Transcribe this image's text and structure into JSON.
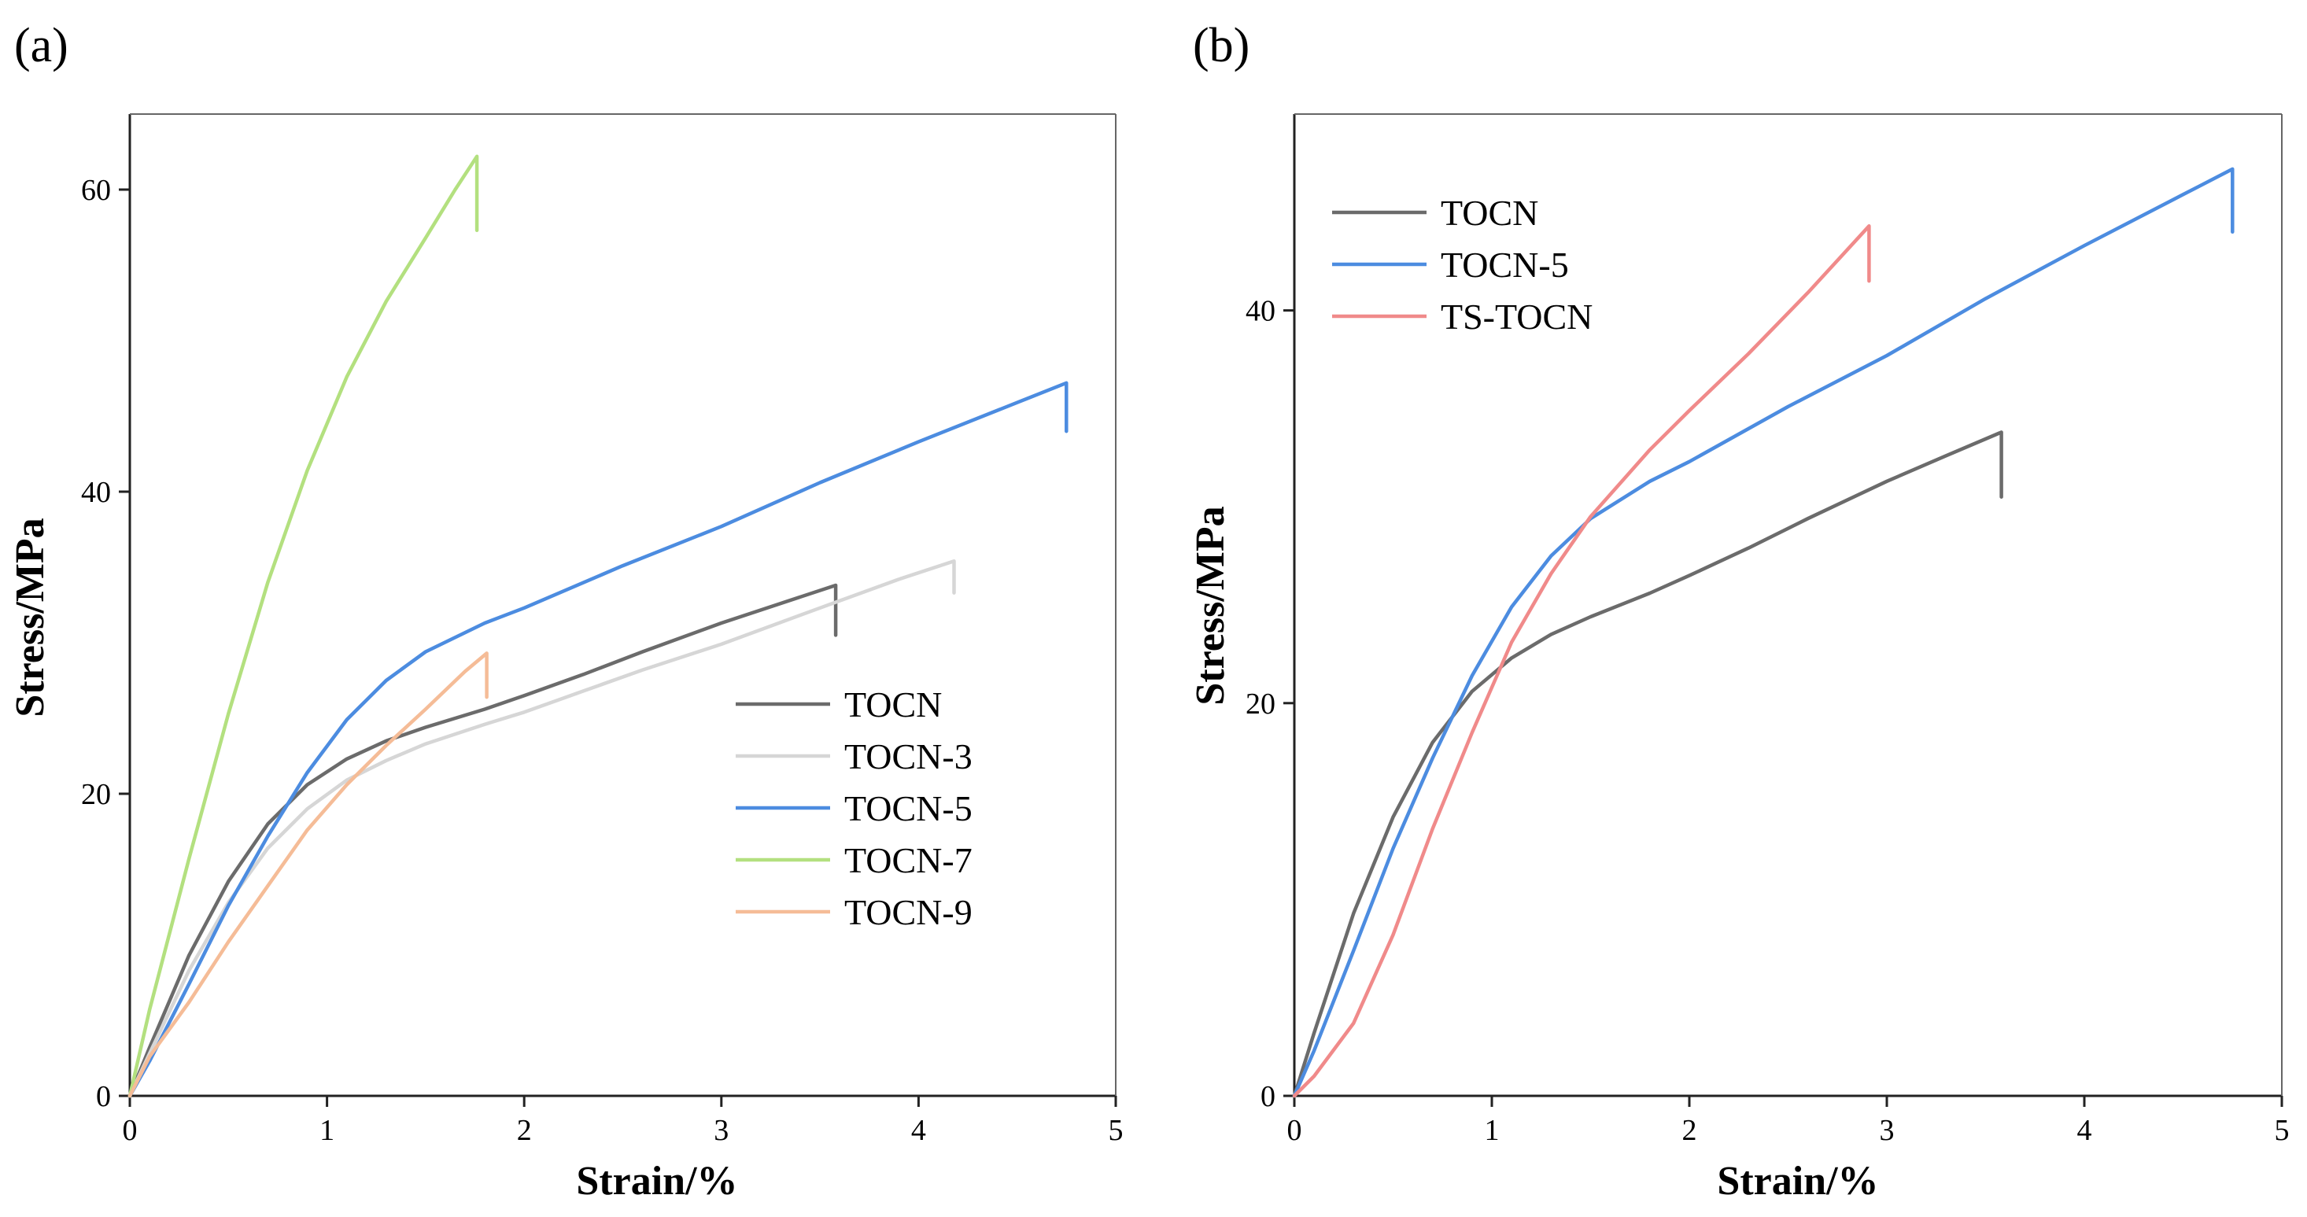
{
  "chart_data": [
    {
      "type": "line",
      "panel_label": "(a)",
      "xlabel": "Strain/%",
      "ylabel": "Stress/MPa",
      "xlim": [
        0,
        5
      ],
      "ylim": [
        0,
        65
      ],
      "xticks": [
        "0",
        "1",
        "2",
        "3",
        "4",
        "5"
      ],
      "yticks": [
        "0",
        "20",
        "40",
        "60"
      ],
      "legend_position": "center-right",
      "series": [
        {
          "name": "TOCN",
          "color": "#6b6b6b",
          "points": [
            [
              0,
              0
            ],
            [
              0.1,
              3.2
            ],
            [
              0.3,
              9.3
            ],
            [
              0.5,
              14.2
            ],
            [
              0.7,
              18.0
            ],
            [
              0.9,
              20.6
            ],
            [
              1.1,
              22.3
            ],
            [
              1.3,
              23.5
            ],
            [
              1.5,
              24.4
            ],
            [
              1.8,
              25.6
            ],
            [
              2.0,
              26.5
            ],
            [
              2.3,
              27.9
            ],
            [
              2.6,
              29.4
            ],
            [
              3.0,
              31.3
            ],
            [
              3.3,
              32.6
            ],
            [
              3.58,
              33.8
            ]
          ],
          "drop_to": 30.5
        },
        {
          "name": "TOCN-3",
          "color": "#d6d6d6",
          "points": [
            [
              0,
              0
            ],
            [
              0.1,
              2.8
            ],
            [
              0.3,
              8.3
            ],
            [
              0.5,
              12.8
            ],
            [
              0.7,
              16.4
            ],
            [
              0.9,
              19.0
            ],
            [
              1.1,
              20.9
            ],
            [
              1.3,
              22.2
            ],
            [
              1.5,
              23.3
            ],
            [
              1.8,
              24.6
            ],
            [
              2.0,
              25.4
            ],
            [
              2.3,
              26.8
            ],
            [
              2.6,
              28.2
            ],
            [
              3.0,
              29.9
            ],
            [
              3.5,
              32.3
            ],
            [
              3.9,
              34.2
            ],
            [
              4.18,
              35.4
            ]
          ],
          "drop_to": 33.3
        },
        {
          "name": "TOCN-5",
          "color": "#4c8ce0",
          "points": [
            [
              0,
              0
            ],
            [
              0.1,
              2.3
            ],
            [
              0.3,
              7.4
            ],
            [
              0.5,
              12.6
            ],
            [
              0.7,
              17.2
            ],
            [
              0.9,
              21.4
            ],
            [
              1.1,
              24.9
            ],
            [
              1.3,
              27.5
            ],
            [
              1.5,
              29.4
            ],
            [
              1.8,
              31.3
            ],
            [
              2.0,
              32.3
            ],
            [
              2.5,
              35.1
            ],
            [
              3.0,
              37.7
            ],
            [
              3.5,
              40.6
            ],
            [
              4.0,
              43.3
            ],
            [
              4.5,
              45.9
            ],
            [
              4.75,
              47.2
            ]
          ],
          "drop_to": 44.0
        },
        {
          "name": "TOCN-7",
          "color": "#b3e07f",
          "points": [
            [
              0,
              0
            ],
            [
              0.1,
              5.7
            ],
            [
              0.3,
              15.7
            ],
            [
              0.5,
              25.3
            ],
            [
              0.7,
              34.0
            ],
            [
              0.9,
              41.4
            ],
            [
              1.1,
              47.6
            ],
            [
              1.3,
              52.6
            ],
            [
              1.5,
              56.8
            ],
            [
              1.65,
              60.0
            ],
            [
              1.76,
              62.2
            ]
          ],
          "drop_to": 57.3
        },
        {
          "name": "TOCN-9",
          "color": "#f5bc97",
          "points": [
            [
              0,
              0
            ],
            [
              0.1,
              2.6
            ],
            [
              0.3,
              6.2
            ],
            [
              0.5,
              10.2
            ],
            [
              0.7,
              13.9
            ],
            [
              0.9,
              17.6
            ],
            [
              1.1,
              20.6
            ],
            [
              1.3,
              23.2
            ],
            [
              1.5,
              25.6
            ],
            [
              1.7,
              28.1
            ],
            [
              1.81,
              29.3
            ]
          ],
          "drop_to": 26.4
        }
      ]
    },
    {
      "type": "line",
      "panel_label": "(b)",
      "xlabel": "Strain/%",
      "ylabel": "Stress/MPa",
      "xlim": [
        0,
        5
      ],
      "ylim": [
        0,
        50
      ],
      "xticks": [
        "0",
        "1",
        "2",
        "3",
        "4",
        "5"
      ],
      "yticks": [
        "0",
        "20",
        "40"
      ],
      "legend_position": "top-left",
      "series": [
        {
          "name": "TOCN",
          "color": "#6b6b6b",
          "points": [
            [
              0,
              0
            ],
            [
              0.1,
              3.2
            ],
            [
              0.3,
              9.3
            ],
            [
              0.5,
              14.2
            ],
            [
              0.7,
              18.0
            ],
            [
              0.9,
              20.6
            ],
            [
              1.1,
              22.3
            ],
            [
              1.3,
              23.5
            ],
            [
              1.5,
              24.4
            ],
            [
              1.8,
              25.6
            ],
            [
              2.0,
              26.5
            ],
            [
              2.3,
              27.9
            ],
            [
              2.6,
              29.4
            ],
            [
              3.0,
              31.3
            ],
            [
              3.3,
              32.6
            ],
            [
              3.58,
              33.8
            ]
          ],
          "drop_to": 30.5
        },
        {
          "name": "TOCN-5",
          "color": "#4c8ce0",
          "points": [
            [
              0,
              0
            ],
            [
              0.1,
              2.3
            ],
            [
              0.3,
              7.4
            ],
            [
              0.5,
              12.6
            ],
            [
              0.7,
              17.2
            ],
            [
              0.9,
              21.4
            ],
            [
              1.1,
              24.9
            ],
            [
              1.3,
              27.5
            ],
            [
              1.5,
              29.4
            ],
            [
              1.8,
              31.3
            ],
            [
              2.0,
              32.3
            ],
            [
              2.5,
              35.1
            ],
            [
              3.0,
              37.7
            ],
            [
              3.5,
              40.6
            ],
            [
              4.0,
              43.3
            ],
            [
              4.5,
              45.9
            ],
            [
              4.75,
              47.2
            ]
          ],
          "drop_to": 44.0
        },
        {
          "name": "TS-TOCN",
          "color": "#f08a8a",
          "points": [
            [
              0,
              0
            ],
            [
              0.1,
              1.0
            ],
            [
              0.3,
              3.7
            ],
            [
              0.5,
              8.2
            ],
            [
              0.7,
              13.6
            ],
            [
              0.9,
              18.5
            ],
            [
              1.1,
              23.1
            ],
            [
              1.3,
              26.6
            ],
            [
              1.5,
              29.5
            ],
            [
              1.8,
              32.9
            ],
            [
              2.0,
              34.9
            ],
            [
              2.3,
              37.8
            ],
            [
              2.6,
              40.9
            ],
            [
              2.91,
              44.3
            ]
          ],
          "drop_to": 41.5
        }
      ]
    }
  ]
}
